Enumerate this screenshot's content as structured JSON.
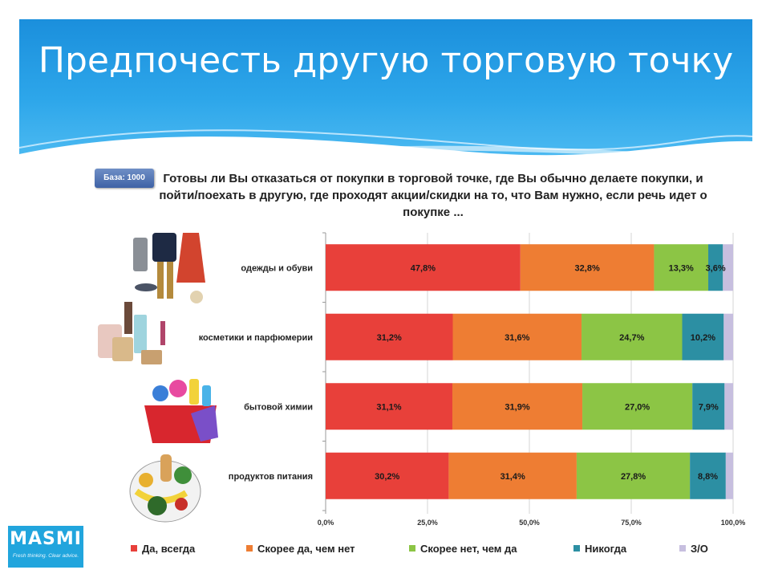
{
  "slide": {
    "title": "Предпочесть другую торговую точку",
    "base_label": "База: 1000",
    "question": "Готовы ли Вы отказаться от покупки в торговой точке, где Вы обычно делаете покупки, и пойти/поехать в другую, где проходят акции/скидки на то, что Вам нужно, если речь идет о покупке ..."
  },
  "logo": {
    "name": "MASMI",
    "tagline": "Fresh thinking. Clear advice."
  },
  "icons": [
    "clothing-photo",
    "cosmetics-photo",
    "household-chemicals-photo",
    "groceries-photo"
  ],
  "colors": {
    "title_bar": "#2a9fe6",
    "series": [
      "#e8403a",
      "#ee7d33",
      "#8cc545",
      "#2c8fa3",
      "#c7bfdf"
    ]
  },
  "chart_data": {
    "type": "bar",
    "orientation": "horizontal",
    "stacked": true,
    "categories": [
      "одежды и обуви",
      "косметики и парфюмерии",
      "бытовой химии",
      "продуктов питания"
    ],
    "series": [
      {
        "name": "Да, всегда",
        "values": [
          47.8,
          31.2,
          31.1,
          30.2
        ],
        "labels": [
          "47,8%",
          "31,2%",
          "31,1%",
          "30,2%"
        ]
      },
      {
        "name": "Скорее да, чем нет",
        "values": [
          32.8,
          31.6,
          31.9,
          31.4
        ],
        "labels": [
          "32,8%",
          "31,6%",
          "31,9%",
          "31,4%"
        ]
      },
      {
        "name": "Скорее нет, чем да",
        "values": [
          13.3,
          24.7,
          27.0,
          27.8
        ],
        "labels": [
          "13,3%",
          "24,7%",
          "27,0%",
          "27,8%"
        ]
      },
      {
        "name": "Никогда",
        "values": [
          3.6,
          10.2,
          7.9,
          8.8
        ],
        "labels": [
          "3,6%",
          "10,2%",
          "7,9%",
          "8,8%"
        ]
      },
      {
        "name": "З/О",
        "values": [
          2.5,
          2.3,
          2.1,
          1.8
        ],
        "labels": [
          "",
          "",
          "",
          ""
        ]
      }
    ],
    "xlim": [
      0,
      100
    ],
    "xticks": [
      "0,0%",
      "25,0%",
      "50,0%",
      "75,0%",
      "100,0%"
    ],
    "grid": true,
    "legend_position": "bottom"
  }
}
